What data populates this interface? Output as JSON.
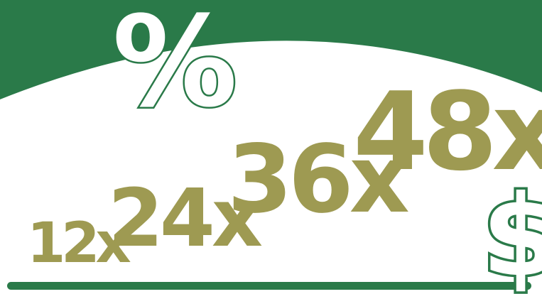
{
  "colors": {
    "brand_green": "#2a7a49",
    "multiplier_olive": "#9e9a52",
    "background": "#ffffff"
  },
  "symbols": {
    "percent": "%",
    "dollar": "$"
  },
  "multipliers": [
    "12x",
    "24x",
    "36x",
    "48x"
  ]
}
